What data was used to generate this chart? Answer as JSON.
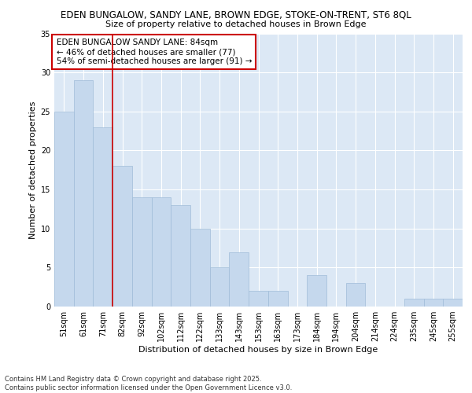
{
  "title_line1": "EDEN BUNGALOW, SANDY LANE, BROWN EDGE, STOKE-ON-TRENT, ST6 8QL",
  "title_line2": "Size of property relative to detached houses in Brown Edge",
  "xlabel": "Distribution of detached houses by size in Brown Edge",
  "ylabel": "Number of detached properties",
  "categories": [
    "51sqm",
    "61sqm",
    "71sqm",
    "82sqm",
    "92sqm",
    "102sqm",
    "112sqm",
    "122sqm",
    "133sqm",
    "143sqm",
    "153sqm",
    "163sqm",
    "173sqm",
    "184sqm",
    "194sqm",
    "204sqm",
    "214sqm",
    "224sqm",
    "235sqm",
    "245sqm",
    "255sqm"
  ],
  "values": [
    25,
    29,
    23,
    18,
    14,
    14,
    13,
    10,
    5,
    7,
    2,
    2,
    0,
    4,
    0,
    3,
    0,
    0,
    1,
    1,
    1
  ],
  "bar_color": "#c5d8ed",
  "bar_edge_color": "#a0bcd8",
  "red_line_index": 3,
  "annotation_text": "EDEN BUNGALOW SANDY LANE: 84sqm\n← 46% of detached houses are smaller (77)\n54% of semi-detached houses are larger (91) →",
  "annotation_box_color": "#ffffff",
  "annotation_box_edge": "#cc0000",
  "red_line_color": "#cc0000",
  "ylim": [
    0,
    35
  ],
  "yticks": [
    0,
    5,
    10,
    15,
    20,
    25,
    30,
    35
  ],
  "background_color": "#dce8f5",
  "footer_text": "Contains HM Land Registry data © Crown copyright and database right 2025.\nContains public sector information licensed under the Open Government Licence v3.0.",
  "title_fontsize": 8.5,
  "subtitle_fontsize": 8.0,
  "axis_label_fontsize": 8.0,
  "tick_fontsize": 7.0,
  "annotation_fontsize": 7.5,
  "footer_fontsize": 6.0
}
